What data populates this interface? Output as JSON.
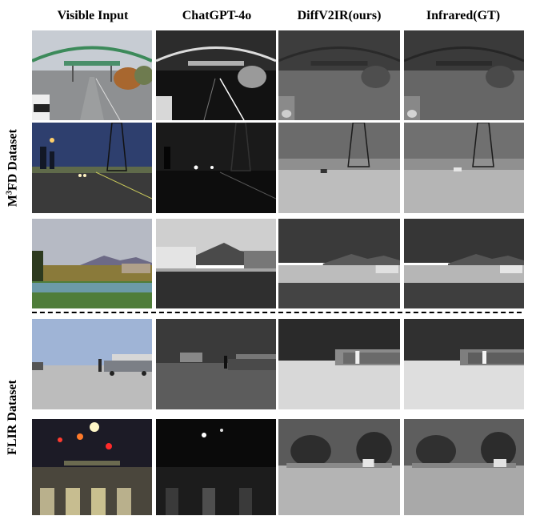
{
  "columns": [
    "Visible Input",
    "ChatGPT-4o",
    "DiffV2IR(ours)",
    "Infrared(GT)"
  ],
  "datasets": {
    "m3fd": {
      "prefix": "M",
      "superscript": "3",
      "rest": "FD Dataset"
    },
    "flir": {
      "label": "FLIR Dataset"
    }
  },
  "rows": [
    {
      "dataset": "M3FD",
      "scene": "road with overhead bridge and trees"
    },
    {
      "dataset": "M3FD",
      "scene": "dusk road with power tower"
    },
    {
      "dataset": "M3FD",
      "scene": "lake with mountain and buildings"
    },
    {
      "dataset": "FLIR",
      "scene": "parking area with trucks and person"
    },
    {
      "dataset": "FLIR",
      "scene": "night crosswalk with traffic lights"
    }
  ]
}
